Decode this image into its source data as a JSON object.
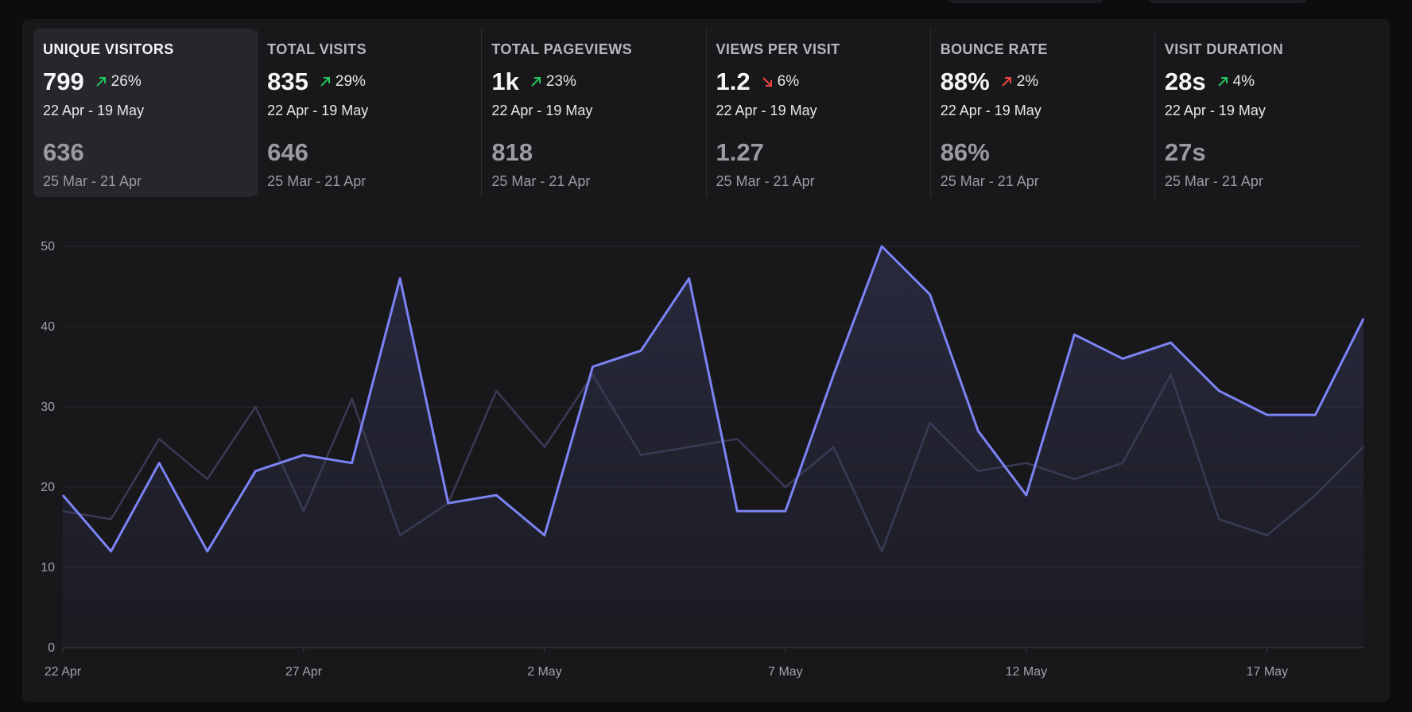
{
  "metrics": [
    {
      "label": "UNIQUE VISITORS",
      "value": "799",
      "change": "26%",
      "trend": "up",
      "period": "22 Apr - 19 May",
      "prev_value": "636",
      "prev_period": "25 Mar - 21 Apr",
      "active": true
    },
    {
      "label": "TOTAL VISITS",
      "value": "835",
      "change": "29%",
      "trend": "up",
      "period": "22 Apr - 19 May",
      "prev_value": "646",
      "prev_period": "25 Mar - 21 Apr",
      "active": false
    },
    {
      "label": "TOTAL PAGEVIEWS",
      "value": "1k",
      "change": "23%",
      "trend": "up",
      "period": "22 Apr - 19 May",
      "prev_value": "818",
      "prev_period": "25 Mar - 21 Apr",
      "active": false
    },
    {
      "label": "VIEWS PER VISIT",
      "value": "1.2",
      "change": "6%",
      "trend": "down",
      "period": "22 Apr - 19 May",
      "prev_value": "1.27",
      "prev_period": "25 Mar - 21 Apr",
      "active": false
    },
    {
      "label": "BOUNCE RATE",
      "value": "88%",
      "change": "2%",
      "trend": "up",
      "period": "22 Apr - 19 May",
      "prev_value": "86%",
      "prev_period": "25 Mar - 21 Apr",
      "active": false
    },
    {
      "label": "VISIT DURATION",
      "value": "28s",
      "change": "4%",
      "trend": "up",
      "period": "22 Apr - 19 May",
      "prev_value": "27s",
      "prev_period": "25 Mar - 21 Apr",
      "active": false
    }
  ],
  "colors": {
    "current_line": "#7c83f5",
    "previous_line": "#3a3a55",
    "up_good": "#22c55e",
    "up_bad": "#ef4444",
    "down_bad": "#ef4444",
    "grid": "#26262c"
  },
  "chart_data": {
    "type": "line",
    "title": "",
    "xlabel": "",
    "ylabel": "",
    "ylim": [
      0,
      50
    ],
    "yticks": [
      0,
      10,
      20,
      30,
      40,
      50
    ],
    "x_tick_labels": [
      "22 Apr",
      "27 Apr",
      "2 May",
      "7 May",
      "12 May",
      "17 May"
    ],
    "x_tick_index": [
      0,
      5,
      10,
      15,
      20,
      25
    ],
    "grid": true,
    "series": [
      {
        "name": "",
        "style": "current",
        "values": [
          19,
          12,
          23,
          12,
          22,
          24,
          23,
          46,
          18,
          19,
          14,
          35,
          37,
          46,
          17,
          17,
          34,
          50,
          44,
          27,
          19,
          39,
          36,
          38,
          32,
          29,
          29,
          41
        ]
      },
      {
        "name": "",
        "style": "previous",
        "values": [
          17,
          16,
          26,
          21,
          30,
          17,
          31,
          14,
          18,
          32,
          25,
          34,
          24,
          25,
          26,
          20,
          25,
          12,
          28,
          22,
          23,
          21,
          23,
          34,
          16,
          14,
          19,
          25
        ]
      }
    ]
  }
}
